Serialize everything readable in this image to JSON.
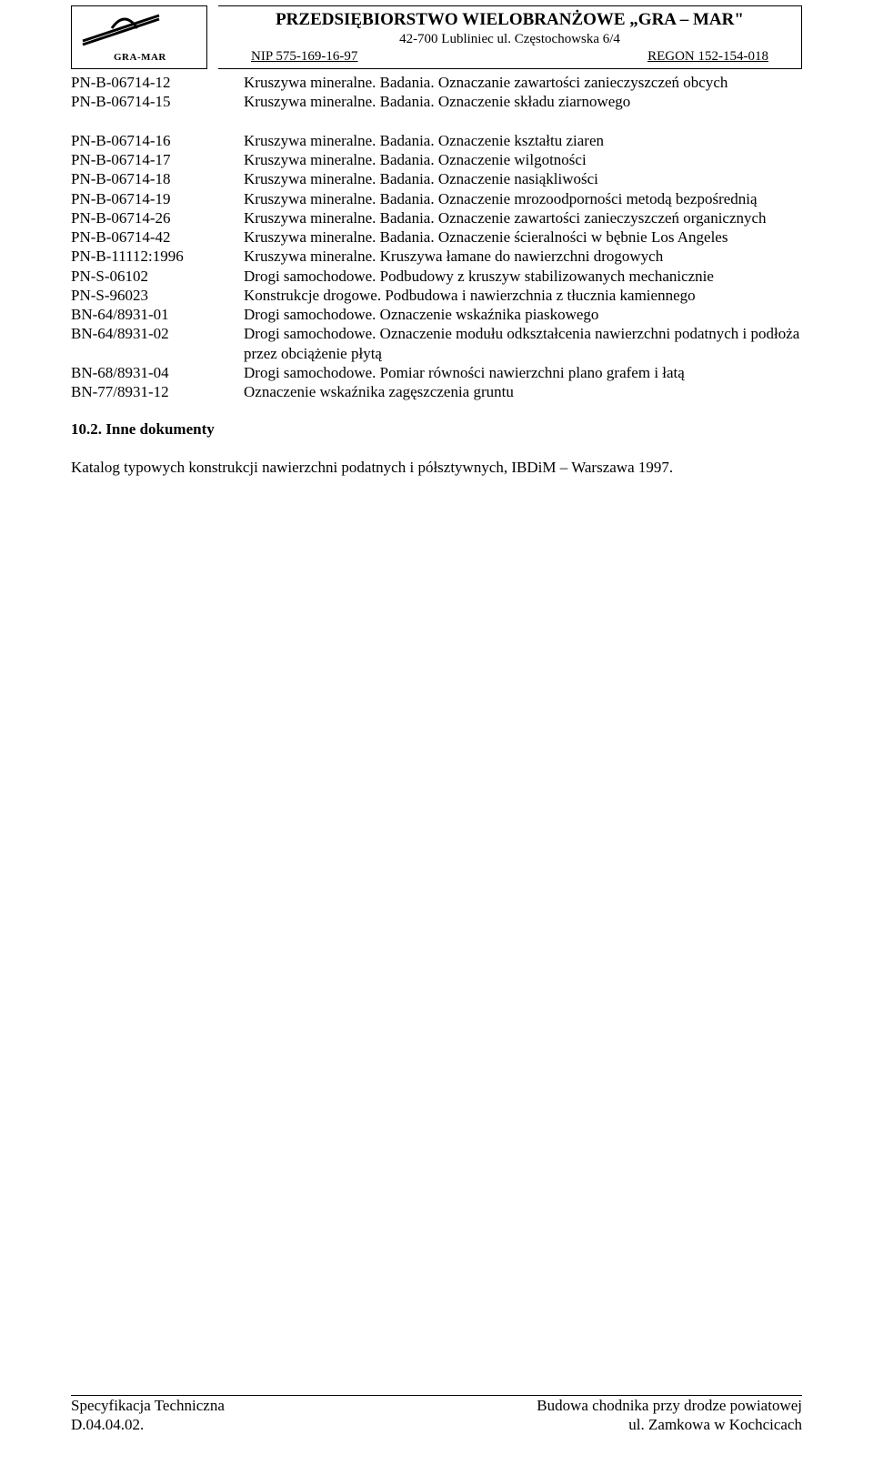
{
  "header": {
    "logo_label": "GRA-MAR",
    "company_name": "PRZEDSIĘBIORSTWO WIELOBRANŻOWE „GRA – MAR\"",
    "address": "42-700 Lubliniec ul. Częstochowska 6/4",
    "nip": "NIP 575-169-16-97",
    "regon": "REGON 152-154-018"
  },
  "definitions": [
    {
      "code": "PN-B-06714-12",
      "text": "Kruszywa mineralne. Badania. Oznaczanie zawartości zanieczyszczeń obcych"
    },
    {
      "code": "PN-B-06714-15",
      "text": "Kruszywa mineralne. Badania. Oznaczenie składu ziarnowego"
    },
    {
      "code": "",
      "text": " "
    },
    {
      "code": "PN-B-06714-16",
      "text": "Kruszywa mineralne. Badania. Oznaczenie kształtu ziaren"
    },
    {
      "code": "PN-B-06714-17",
      "text": "Kruszywa mineralne. Badania. Oznaczenie wilgotności"
    },
    {
      "code": "PN-B-06714-18",
      "text": "Kruszywa mineralne. Badania. Oznaczenie nasiąkliwości"
    },
    {
      "code": "PN-B-06714-19",
      "text": "Kruszywa mineralne. Badania. Oznaczenie mrozoodporności metodą bezpośrednią"
    },
    {
      "code": "PN-B-06714-26",
      "text": "Kruszywa mineralne. Badania. Oznaczenie zawartości zanieczyszczeń organicznych"
    },
    {
      "code": "PN-B-06714-42",
      "text": "Kruszywa mineralne. Badania. Oznaczenie ścieralności w bębnie Los Angeles"
    },
    {
      "code": "PN-B-11112:1996",
      "text": "Kruszywa mineralne. Kruszywa łamane do nawierzchni drogowych"
    },
    {
      "code": "PN-S-06102",
      "text": "Drogi samochodowe. Podbudowy z kruszyw stabilizowanych mechanicznie"
    },
    {
      "code": "PN-S-96023",
      "text": "Konstrukcje drogowe. Podbudowa i nawierzchnia z tłucznia kamiennego"
    },
    {
      "code": "BN-64/8931-01",
      "text": "Drogi samochodowe. Oznaczenie wskaźnika piaskowego"
    },
    {
      "code": "BN-64/8931-02",
      "text": "Drogi samochodowe. Oznaczenie modułu odkształcenia nawierzchni podatnych i podłoża przez obciążenie płytą"
    },
    {
      "code": "BN-68/8931-04",
      "text": "Drogi samochodowe. Pomiar równości nawierzchni plano grafem i łatą"
    },
    {
      "code": "BN-77/8931-12",
      "text": "Oznaczenie wskaźnika zagęszczenia gruntu"
    }
  ],
  "section": {
    "number_title": "10.2.   Inne dokumenty",
    "paragraph": "Katalog typowych konstrukcji nawierzchni podatnych i półsztywnych, IBDiM – Warszawa 1997."
  },
  "footer": {
    "left1": "Specyfikacja Techniczna",
    "right1": "Budowa chodnika przy drodze  powiatowej",
    "left2": "D.04.04.02.",
    "right2": "ul. Zamkowa w Kochcicach"
  }
}
